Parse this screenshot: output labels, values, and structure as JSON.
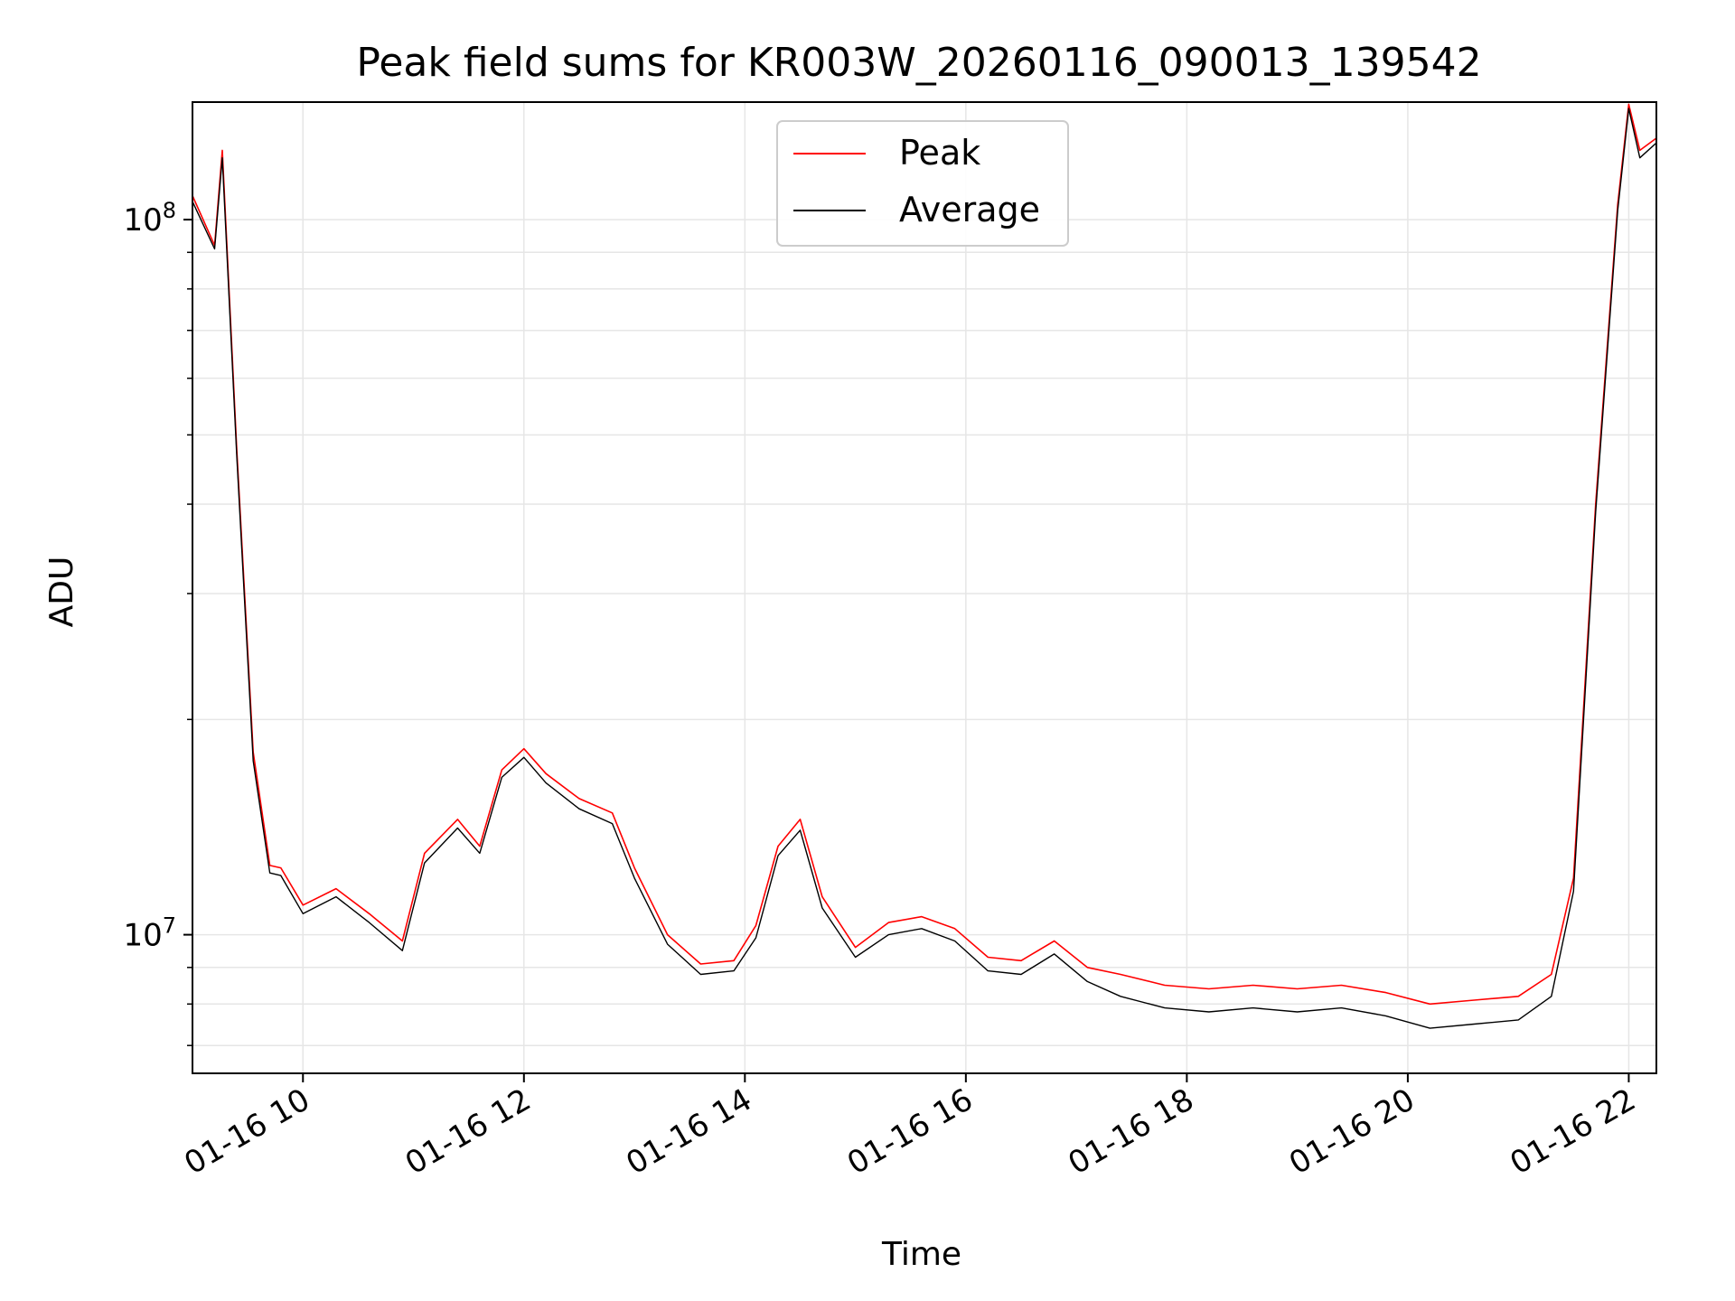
{
  "chart_data": {
    "type": "line",
    "title": "Peak field sums for KR003W_20260116_090013_139542",
    "xlabel": "Time",
    "ylabel": "ADU",
    "yscale": "log",
    "ylim": [
      6400000,
      146000000
    ],
    "xlim_hours": [
      9.0,
      22.25
    ],
    "grid": true,
    "legend_position": "top-center",
    "x_tick_labels": [
      "01-16 10",
      "01-16 12",
      "01-16 14",
      "01-16 16",
      "01-16 18",
      "01-16 20",
      "01-16 22"
    ],
    "x_tick_hours": [
      10,
      12,
      14,
      16,
      18,
      20,
      22
    ],
    "y_major_ticks": [
      {
        "value": 10000000,
        "base": "10",
        "exponent": "7"
      },
      {
        "value": 100000000,
        "base": "10",
        "exponent": "8"
      }
    ],
    "series": [
      {
        "name": "Peak",
        "color": "#ff0000",
        "x_hours": [
          9.0,
          9.2,
          9.27,
          9.4,
          9.55,
          9.7,
          9.8,
          10.0,
          10.3,
          10.6,
          10.9,
          11.1,
          11.4,
          11.6,
          11.8,
          12.0,
          12.2,
          12.5,
          12.8,
          13.0,
          13.3,
          13.6,
          13.9,
          14.1,
          14.3,
          14.5,
          14.7,
          15.0,
          15.3,
          15.6,
          15.9,
          16.2,
          16.5,
          16.8,
          17.1,
          17.4,
          17.8,
          18.2,
          18.6,
          19.0,
          19.4,
          19.8,
          20.2,
          20.6,
          21.0,
          21.3,
          21.5,
          21.7,
          21.9,
          22.0,
          22.1,
          22.25
        ],
        "values": [
          108000000,
          92000000,
          125000000,
          48000000,
          18000000,
          12500000,
          12400000,
          11000000,
          11600000,
          10700000,
          9800000,
          13000000,
          14500000,
          13300000,
          17000000,
          18200000,
          16800000,
          15500000,
          14800000,
          12400000,
          10000000,
          9100000,
          9200000,
          10300000,
          13300000,
          14500000,
          11300000,
          9600000,
          10400000,
          10600000,
          10200000,
          9300000,
          9200000,
          9800000,
          9000000,
          8800000,
          8500000,
          8400000,
          8500000,
          8400000,
          8500000,
          8300000,
          8000000,
          8100000,
          8200000,
          8800000,
          12000000,
          40000000,
          105000000,
          145000000,
          125000000,
          130000000
        ]
      },
      {
        "name": "Average",
        "color": "#000000",
        "x_hours": [
          9.0,
          9.2,
          9.27,
          9.4,
          9.55,
          9.7,
          9.8,
          10.0,
          10.3,
          10.6,
          10.9,
          11.1,
          11.4,
          11.6,
          11.8,
          12.0,
          12.2,
          12.5,
          12.8,
          13.0,
          13.3,
          13.6,
          13.9,
          14.1,
          14.3,
          14.5,
          14.7,
          15.0,
          15.3,
          15.6,
          15.9,
          16.2,
          16.5,
          16.8,
          17.1,
          17.4,
          17.8,
          18.2,
          18.6,
          19.0,
          19.4,
          19.8,
          20.2,
          20.6,
          21.0,
          21.3,
          21.5,
          21.7,
          21.9,
          22.0,
          22.1,
          22.25
        ],
        "values": [
          106000000,
          91000000,
          122000000,
          47000000,
          17500000,
          12200000,
          12100000,
          10700000,
          11300000,
          10400000,
          9500000,
          12600000,
          14100000,
          13000000,
          16600000,
          17700000,
          16300000,
          15000000,
          14300000,
          12000000,
          9700000,
          8800000,
          8900000,
          9900000,
          12900000,
          14000000,
          10900000,
          9300000,
          10000000,
          10200000,
          9800000,
          8900000,
          8800000,
          9400000,
          8600000,
          8200000,
          7900000,
          7800000,
          7900000,
          7800000,
          7900000,
          7700000,
          7400000,
          7500000,
          7600000,
          8200000,
          11500000,
          39000000,
          103000000,
          143000000,
          122000000,
          128000000
        ]
      }
    ]
  }
}
